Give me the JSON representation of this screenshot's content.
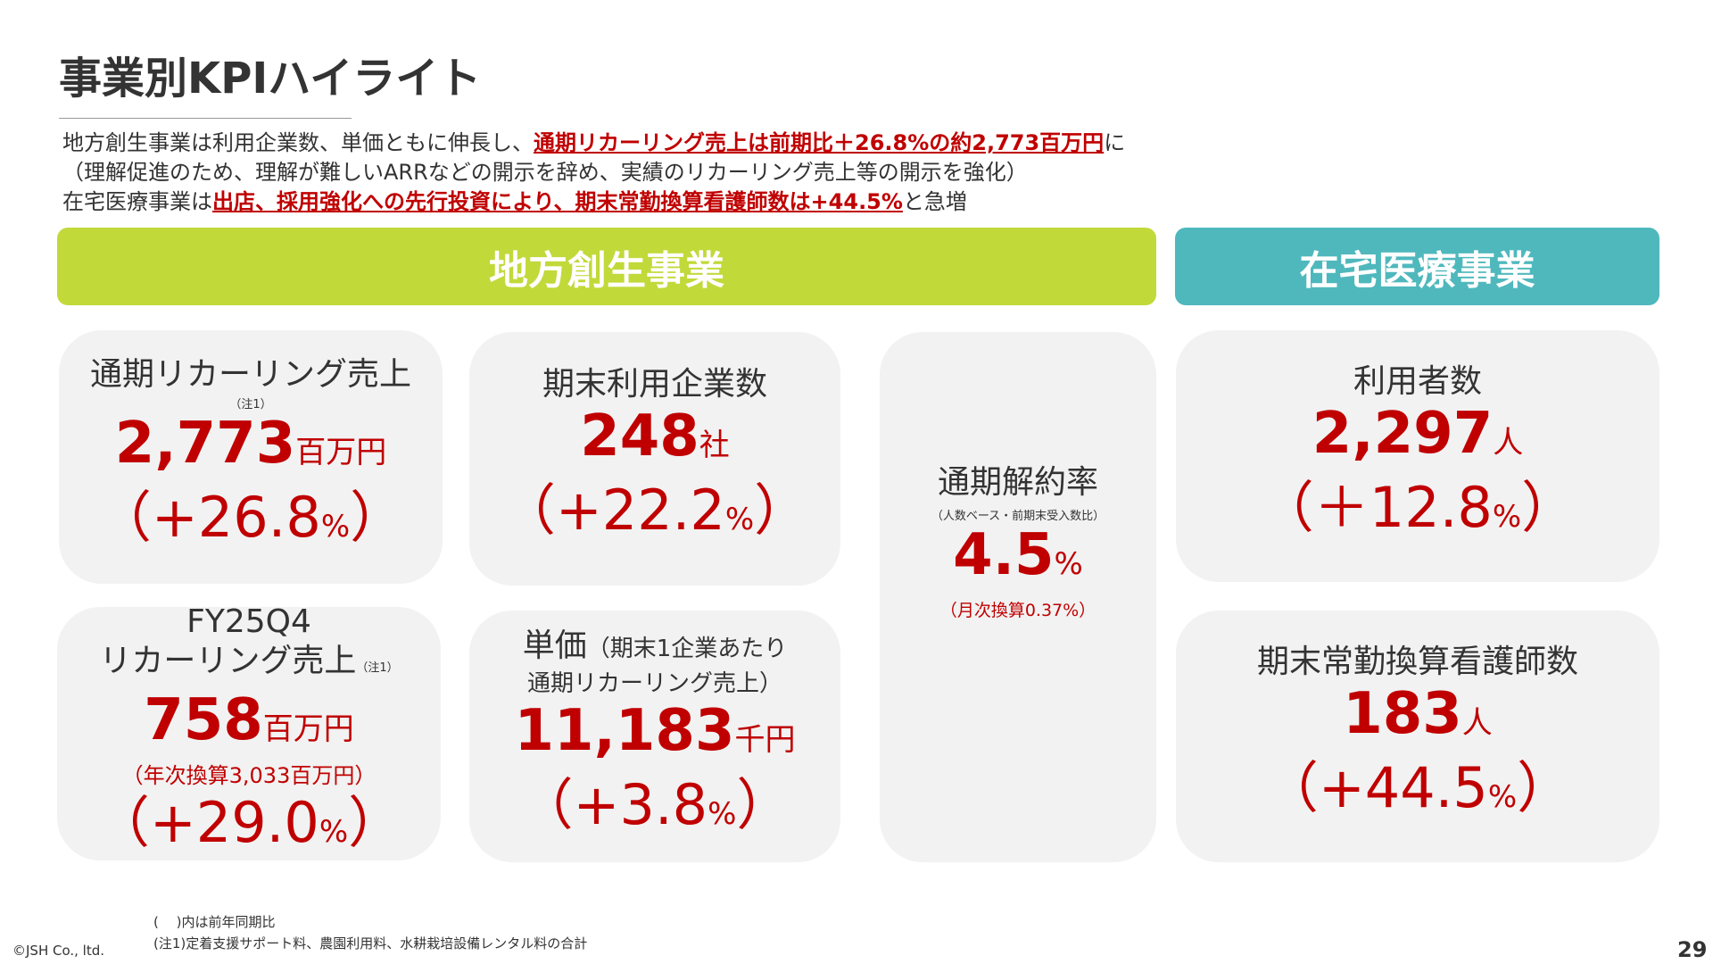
{
  "title": "事業別KPIハイライト",
  "summary": {
    "line1_a": "地方創生事業は利用企業数、単価ともに伸長し、",
    "line1_hl": "通期リカーリング売上は前期比＋26.8%の約2,773百万円",
    "line1_b": "に",
    "line2": "（理解促進のため、理解が難しいARRなどの開示を辞め、実績のリカーリング売上等の開示を強化）",
    "line3_a": "在宅医療事業は",
    "line3_hl": "出店、採用強化への先行投資により、期末常勤換算看護師数は+44.5%",
    "line3_b": "と急増"
  },
  "segments": {
    "regional": "地方創生事業",
    "homecare": "在宅医療事業"
  },
  "cards": {
    "recurring_annual": {
      "label": "通期リカーリング売上",
      "note": "（注1）",
      "value": "2,773",
      "unit": "百万円",
      "change_open": "（+26.8",
      "change_pct": "%",
      "change_close": "）"
    },
    "q4_recurring": {
      "label1": "FY25Q4",
      "label2": "リカーリング売上",
      "note": "（注1）",
      "value": "758",
      "unit": "百万円",
      "sub": "（年次換算3,033百万円）",
      "change_open": "（+29.0",
      "change_pct": "%",
      "change_close": "）"
    },
    "companies": {
      "label": "期末利用企業数",
      "value": "248",
      "unit": "社",
      "change_open": "（+22.2",
      "change_pct": "%",
      "change_close": "）"
    },
    "unit_price": {
      "label_big": "単価",
      "label_small1": "（期末1企業あたり",
      "label_small2": "通期リカーリング売上）",
      "value": "11,183",
      "unit": "千円",
      "change_open": "（+3.8",
      "change_pct": "%",
      "change_close": "）"
    },
    "churn": {
      "label": "通期解約率",
      "note": "（人数ベース・前期末受入数比）",
      "value": "4.5",
      "unit": "%",
      "sub": "（月次換算0.37%）"
    },
    "users": {
      "label": "利用者数",
      "value": "2,297",
      "unit": "人",
      "change_open": "（＋12.8",
      "change_pct": "%",
      "change_close": "）"
    },
    "nurses": {
      "label": "期末常勤換算看護師数",
      "value": "183",
      "unit": "人",
      "change_open": "（+44.5",
      "change_pct": "%",
      "change_close": "）"
    }
  },
  "footnotes": {
    "yoy": "(　 )内は前年同期比",
    "note1": "(注1)定着支援サポート料、農園利用料、水耕栽培設備レンタル料の合計"
  },
  "copyright": "©JSH Co., ltd.",
  "page_number": "29",
  "colors": {
    "accent_red": "#c00000",
    "green": "#c2d93a",
    "teal": "#4fb8bd",
    "card_bg": "#f2f2f2"
  }
}
